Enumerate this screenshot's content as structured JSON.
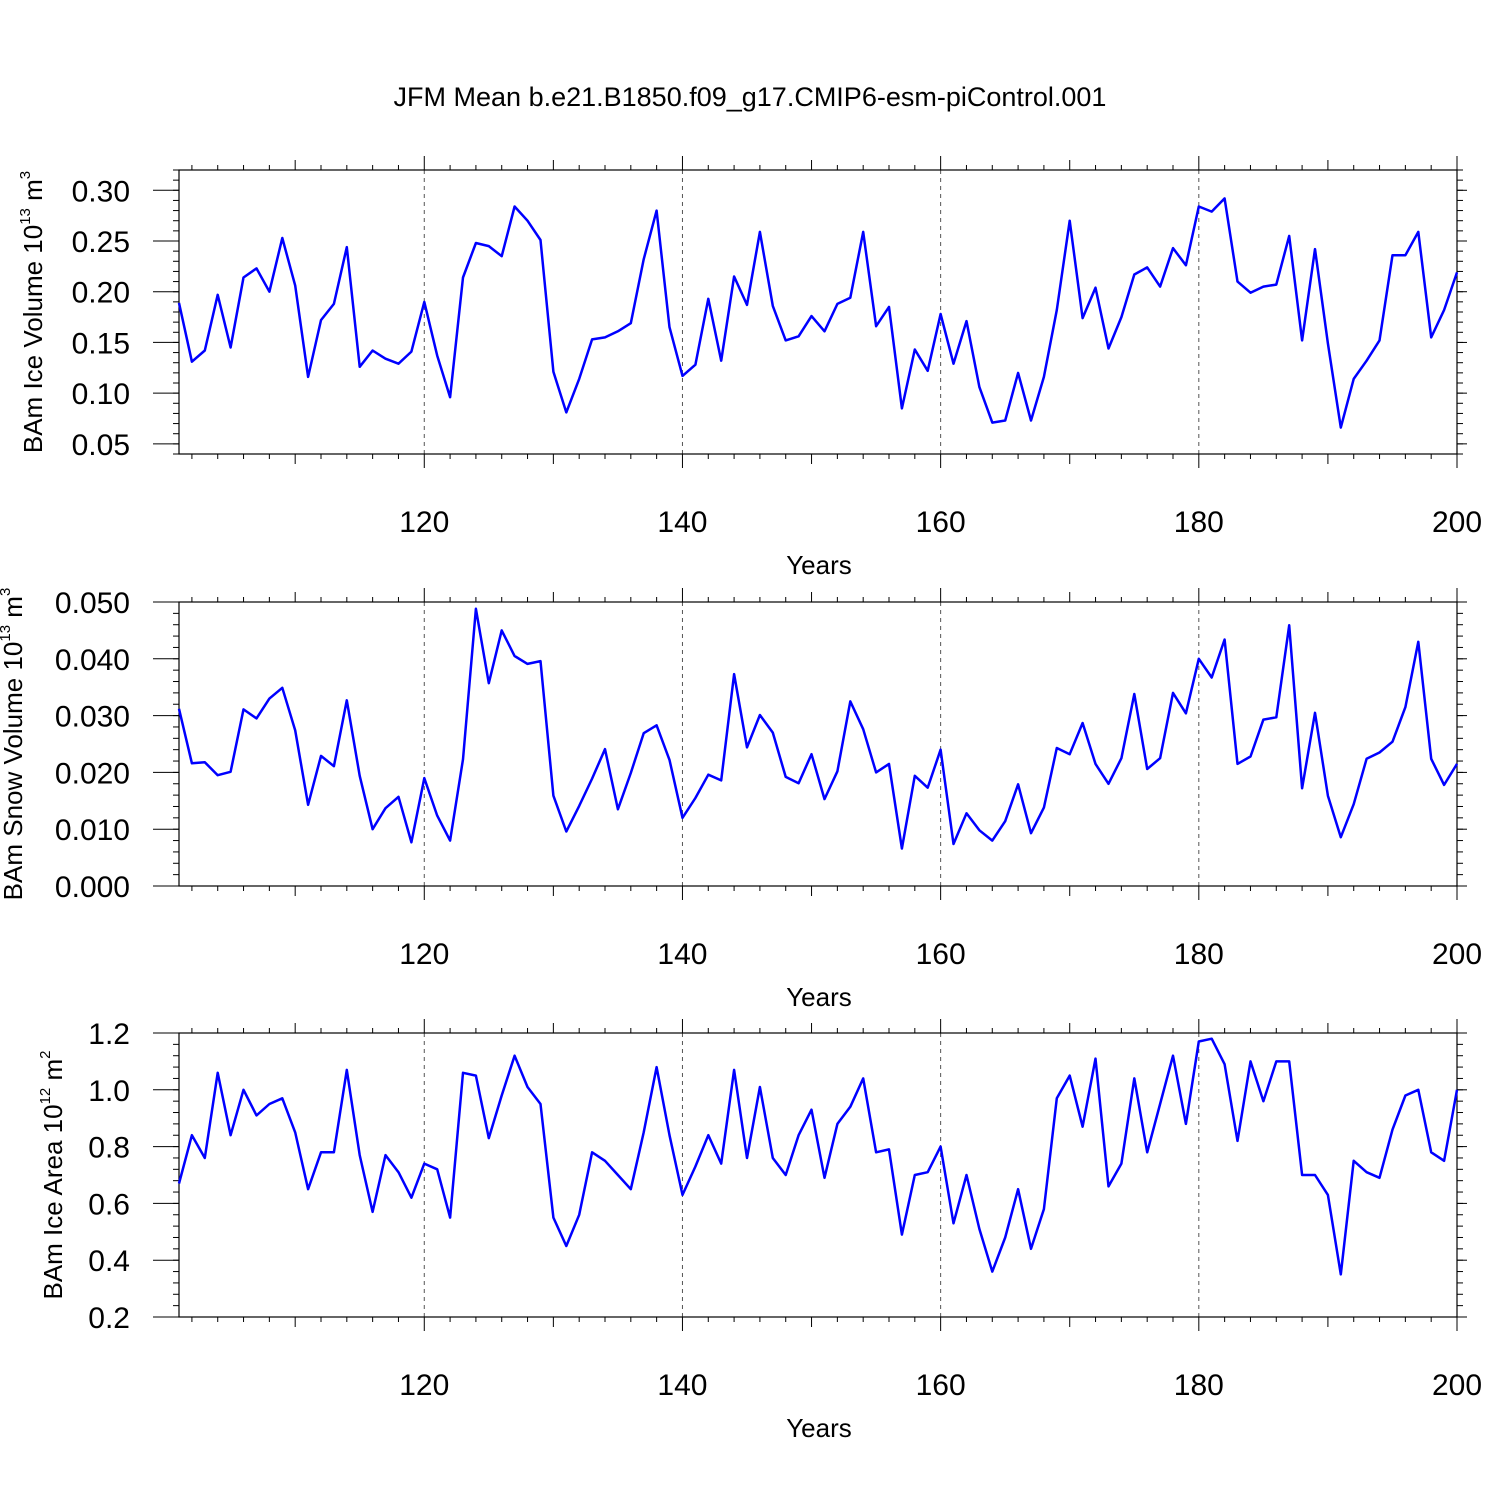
{
  "title": "JFM Mean b.e21.B1850.f09_g17.CMIP6-esm-piControl.001",
  "colors": {
    "line": "#0000ff",
    "axis": "#000000",
    "grid": "#555555"
  },
  "chart_data": [
    {
      "type": "line",
      "ylabel": {
        "text": "BAm Ice Volume 10",
        "exp": "13",
        "unit": " m",
        "unit_exp": "3"
      },
      "xlabel": "Years",
      "xlim": [
        101,
        200
      ],
      "ylim": [
        0.04,
        0.32
      ],
      "x_ticks": [
        120,
        140,
        160,
        180,
        200
      ],
      "x_tick_labels": [
        "120",
        "140",
        "160",
        "180",
        "200"
      ],
      "y_ticks": [
        0.05,
        0.1,
        0.15,
        0.2,
        0.25,
        0.3
      ],
      "y_tick_labels": [
        "0.05",
        "0.10",
        "0.15",
        "0.20",
        "0.25",
        "0.30"
      ],
      "grid": "vertical dashed at major x ticks",
      "x_start": 101,
      "values": [
        0.189,
        0.131,
        0.142,
        0.197,
        0.145,
        0.214,
        0.223,
        0.2,
        0.253,
        0.206,
        0.116,
        0.172,
        0.188,
        0.244,
        0.126,
        0.142,
        0.134,
        0.129,
        0.141,
        0.19,
        0.137,
        0.096,
        0.214,
        0.248,
        0.245,
        0.235,
        0.284,
        0.27,
        0.251,
        0.121,
        0.081,
        0.114,
        0.153,
        0.155,
        0.161,
        0.169,
        0.232,
        0.28,
        0.165,
        0.117,
        0.128,
        0.193,
        0.132,
        0.215,
        0.187,
        0.259,
        0.186,
        0.152,
        0.156,
        0.176,
        0.161,
        0.188,
        0.194,
        0.259,
        0.166,
        0.185,
        0.085,
        0.143,
        0.122,
        0.178,
        0.129,
        0.171,
        0.106,
        0.071,
        0.073,
        0.12,
        0.073,
        0.116,
        0.182,
        0.27,
        0.174,
        0.204,
        0.144,
        0.175,
        0.217,
        0.224,
        0.205,
        0.243,
        0.226,
        0.284,
        0.279,
        0.292,
        0.21,
        0.199,
        0.205,
        0.207,
        0.255,
        0.152,
        0.242,
        0.149,
        0.066,
        0.114,
        0.132,
        0.152,
        0.236,
        0.236,
        0.259,
        0.155,
        0.182,
        0.219
      ]
    },
    {
      "type": "line",
      "ylabel": {
        "text": "BAm Snow Volume 10",
        "exp": "13",
        "unit": " m",
        "unit_exp": "3"
      },
      "xlabel": "Years",
      "xlim": [
        101,
        200
      ],
      "ylim": [
        0.0,
        0.05
      ],
      "x_ticks": [
        120,
        140,
        160,
        180,
        200
      ],
      "x_tick_labels": [
        "120",
        "140",
        "160",
        "180",
        "200"
      ],
      "y_ticks": [
        0.0,
        0.01,
        0.02,
        0.03,
        0.04,
        0.05
      ],
      "y_tick_labels": [
        "0.000",
        "0.010",
        "0.020",
        "0.030",
        "0.040",
        "0.050"
      ],
      "grid": "vertical dashed at major x ticks",
      "x_start": 101,
      "values": [
        0.0312,
        0.0216,
        0.0218,
        0.0195,
        0.0201,
        0.0311,
        0.0295,
        0.033,
        0.0349,
        0.0274,
        0.0143,
        0.0229,
        0.0211,
        0.0327,
        0.0194,
        0.01,
        0.0137,
        0.0157,
        0.0077,
        0.019,
        0.0124,
        0.008,
        0.0223,
        0.0488,
        0.0357,
        0.045,
        0.0405,
        0.0391,
        0.0396,
        0.0159,
        0.0096,
        0.0141,
        0.0189,
        0.0241,
        0.0135,
        0.0199,
        0.0269,
        0.0283,
        0.0222,
        0.012,
        0.0155,
        0.0196,
        0.0186,
        0.0373,
        0.0244,
        0.0301,
        0.027,
        0.0192,
        0.0181,
        0.0232,
        0.0153,
        0.0202,
        0.0325,
        0.0276,
        0.02,
        0.0215,
        0.0066,
        0.0194,
        0.0173,
        0.024,
        0.0074,
        0.0128,
        0.0098,
        0.008,
        0.0114,
        0.0179,
        0.0093,
        0.0138,
        0.0243,
        0.0232,
        0.0287,
        0.0215,
        0.018,
        0.0225,
        0.0338,
        0.0206,
        0.0225,
        0.034,
        0.0304,
        0.04,
        0.0367,
        0.0434,
        0.0215,
        0.0228,
        0.0293,
        0.0297,
        0.0459,
        0.0172,
        0.0305,
        0.0159,
        0.0086,
        0.0144,
        0.0224,
        0.0235,
        0.0254,
        0.0315,
        0.043,
        0.0224,
        0.0178,
        0.0215
      ]
    },
    {
      "type": "line",
      "ylabel": {
        "text": "BAm Ice Area 10",
        "exp": "12",
        "unit": " m",
        "unit_exp": "2"
      },
      "xlabel": "Years",
      "xlim": [
        101,
        200
      ],
      "ylim": [
        0.2,
        1.2
      ],
      "x_ticks": [
        120,
        140,
        160,
        180,
        200
      ],
      "x_tick_labels": [
        "120",
        "140",
        "160",
        "180",
        "200"
      ],
      "y_ticks": [
        0.2,
        0.4,
        0.6,
        0.8,
        1.0,
        1.2
      ],
      "y_tick_labels": [
        "0.2",
        "0.4",
        "0.6",
        "0.8",
        "1.0",
        "1.2"
      ],
      "grid": "vertical dashed at major x ticks",
      "x_start": 101,
      "values": [
        0.67,
        0.84,
        0.76,
        1.06,
        0.84,
        1.0,
        0.91,
        0.95,
        0.97,
        0.85,
        0.65,
        0.78,
        0.78,
        1.07,
        0.77,
        0.57,
        0.77,
        0.71,
        0.62,
        0.74,
        0.72,
        0.55,
        1.06,
        1.05,
        0.83,
        0.98,
        1.12,
        1.01,
        0.95,
        0.55,
        0.45,
        0.56,
        0.78,
        0.75,
        0.7,
        0.65,
        0.85,
        1.08,
        0.84,
        0.63,
        0.73,
        0.84,
        0.74,
        1.07,
        0.76,
        1.01,
        0.76,
        0.7,
        0.84,
        0.93,
        0.69,
        0.88,
        0.94,
        1.04,
        0.78,
        0.79,
        0.49,
        0.7,
        0.71,
        0.8,
        0.53,
        0.7,
        0.51,
        0.36,
        0.48,
        0.65,
        0.44,
        0.58,
        0.97,
        1.05,
        0.87,
        1.11,
        0.66,
        0.74,
        1.04,
        0.78,
        0.95,
        1.12,
        0.88,
        1.17,
        1.18,
        1.09,
        0.82,
        1.1,
        0.96,
        1.1,
        1.1,
        0.7,
        0.7,
        0.63,
        0.35,
        0.75,
        0.71,
        0.69,
        0.86,
        0.98,
        1.0,
        0.78,
        0.75,
        1.0
      ]
    }
  ]
}
